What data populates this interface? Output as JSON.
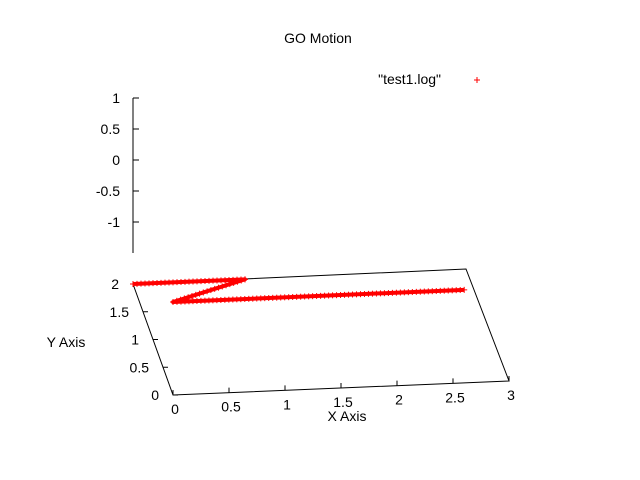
{
  "chart_data": {
    "type": "scatter",
    "title": "GO Motion",
    "projection": "3d",
    "xlabel": "X Axis",
    "ylabel": "Y Axis",
    "zlabel": "",
    "xlim": [
      0,
      3
    ],
    "ylim": [
      0,
      2
    ],
    "zlim": [
      -1.5,
      1
    ],
    "x_ticks": [
      "0",
      "0.5",
      "1",
      "1.5",
      "2",
      "2.5",
      "3"
    ],
    "y_ticks": [
      "0",
      "0.5",
      "1",
      "1.5",
      "2"
    ],
    "z_ticks": [
      "1",
      "0.5",
      "0",
      "-0.5",
      "-1"
    ],
    "grid": false,
    "legend_position": "top-right",
    "series": [
      {
        "name": "\"test1.log\"",
        "marker": "+",
        "color": "#ff0000",
        "points": [
          {
            "x": 0.0,
            "y": 2.0,
            "z": -1.5
          },
          {
            "x": 1.0,
            "y": 2.0,
            "z": -1.5
          },
          {
            "x": 0.0,
            "y": 0.0,
            "z": 0.0
          },
          {
            "x": 2.6,
            "y": 0.0,
            "z": 0.0
          }
        ]
      }
    ]
  }
}
